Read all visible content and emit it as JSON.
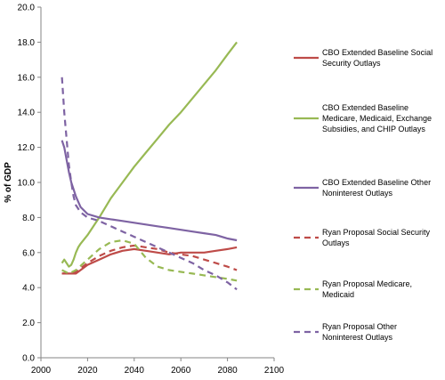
{
  "chart_data": {
    "type": "line",
    "ylabel": "% of GDP",
    "xlabel": "",
    "xlim": [
      2000,
      2100
    ],
    "ylim": [
      0,
      20
    ],
    "x_ticks": [
      2000,
      2020,
      2040,
      2060,
      2080,
      2100
    ],
    "x_tick_labels": [
      "2000",
      "2020",
      "2040",
      "2060",
      "2080",
      "2100"
    ],
    "y_ticks": [
      0,
      2,
      4,
      6,
      8,
      10,
      12,
      14,
      16,
      18,
      20
    ],
    "y_tick_labels": [
      "0.0",
      "2.0",
      "4.0",
      "6.0",
      "8.0",
      "10.0",
      "12.0",
      "14.0",
      "16.0",
      "18.0",
      "20.0"
    ],
    "grid": false,
    "legend_position": "right",
    "series": [
      {
        "name": "CBO Extended Baseline Social Security Outlays",
        "legend_lines": [
          "CBO Extended Baseline  Social",
          "Security Outlays"
        ],
        "color": "#be4b48",
        "style": "solid",
        "x": [
          2009,
          2012,
          2015,
          2020,
          2025,
          2030,
          2035,
          2040,
          2045,
          2050,
          2055,
          2060,
          2065,
          2070,
          2075,
          2080,
          2084
        ],
        "y": [
          4.8,
          4.8,
          4.8,
          5.3,
          5.6,
          5.9,
          6.1,
          6.2,
          6.1,
          6.0,
          5.9,
          6.0,
          6.0,
          6.0,
          6.1,
          6.2,
          6.3
        ]
      },
      {
        "name": "CBO Extended Baseline Medicare, Medicaid, Exchange Subsidies, and CHIP Outlays",
        "legend_lines": [
          "CBO Extended Baseline",
          "Medicare, Medicaid, Exchange",
          "Subsidies, and CHIP Outlays"
        ],
        "color": "#98b954",
        "style": "solid",
        "x": [
          2009,
          2010,
          2011,
          2012,
          2013,
          2014,
          2015,
          2016,
          2017,
          2020,
          2025,
          2030,
          2035,
          2040,
          2045,
          2050,
          2055,
          2060,
          2065,
          2070,
          2075,
          2080,
          2084
        ],
        "y": [
          5.4,
          5.6,
          5.4,
          5.2,
          5.3,
          5.6,
          6.0,
          6.3,
          6.5,
          7.0,
          8.0,
          9.1,
          10.0,
          10.9,
          11.7,
          12.5,
          13.3,
          14.0,
          14.8,
          15.6,
          16.4,
          17.3,
          18.0
        ]
      },
      {
        "name": "CBO Extended Baseline Other Noninterest Outlays",
        "legend_lines": [
          "CBO Extended Baseline Other",
          "Noninterest Outlays"
        ],
        "color": "#7e63a3",
        "style": "solid",
        "x": [
          2009,
          2010,
          2011,
          2012,
          2013,
          2014,
          2015,
          2017,
          2020,
          2025,
          2030,
          2035,
          2040,
          2045,
          2050,
          2055,
          2060,
          2065,
          2070,
          2075,
          2080,
          2084
        ],
        "y": [
          12.4,
          12.0,
          11.3,
          10.6,
          10.0,
          9.6,
          9.2,
          8.6,
          8.2,
          8.0,
          7.9,
          7.8,
          7.7,
          7.6,
          7.5,
          7.4,
          7.3,
          7.2,
          7.1,
          7.0,
          6.8,
          6.7
        ]
      },
      {
        "name": "Ryan Proposal Social Security Outlays",
        "legend_lines": [
          "Ryan Proposal  Social Security",
          "Outlays"
        ],
        "color": "#be4b48",
        "style": "dashed",
        "x": [
          2009,
          2012,
          2015,
          2020,
          2025,
          2030,
          2035,
          2040,
          2045,
          2050,
          2055,
          2060,
          2065,
          2070,
          2075,
          2080,
          2084
        ],
        "y": [
          4.8,
          4.8,
          4.9,
          5.4,
          5.8,
          6.1,
          6.3,
          6.4,
          6.3,
          6.2,
          6.0,
          5.9,
          5.8,
          5.6,
          5.4,
          5.2,
          5.0
        ]
      },
      {
        "name": "Ryan Proposal Medicare, Medicaid",
        "legend_lines": [
          "Ryan Proposal Medicare,",
          "Medicaid"
        ],
        "color": "#98b954",
        "style": "dashed",
        "x": [
          2009,
          2012,
          2015,
          2020,
          2025,
          2030,
          2035,
          2040,
          2045,
          2050,
          2055,
          2060,
          2065,
          2070,
          2075,
          2080,
          2084
        ],
        "y": [
          5.0,
          4.8,
          5.0,
          5.6,
          6.2,
          6.6,
          6.7,
          6.5,
          5.7,
          5.2,
          5.0,
          4.9,
          4.8,
          4.7,
          4.6,
          4.5,
          4.4
        ]
      },
      {
        "name": "Ryan Proposal Other Noninterest Outlays",
        "legend_lines": [
          "Ryan Proposal Other",
          "Noninterest Outlays"
        ],
        "color": "#7e63a3",
        "style": "dashed",
        "x": [
          2009,
          2010,
          2011,
          2012,
          2013,
          2014,
          2015,
          2017,
          2020,
          2025,
          2030,
          2035,
          2040,
          2045,
          2050,
          2055,
          2060,
          2065,
          2070,
          2075,
          2080,
          2084
        ],
        "y": [
          16.0,
          14.0,
          12.5,
          11.0,
          10.0,
          9.2,
          8.7,
          8.3,
          8.0,
          7.8,
          7.5,
          7.2,
          6.9,
          6.6,
          6.3,
          6.0,
          5.7,
          5.4,
          5.0,
          4.7,
          4.3,
          3.9
        ]
      }
    ]
  }
}
